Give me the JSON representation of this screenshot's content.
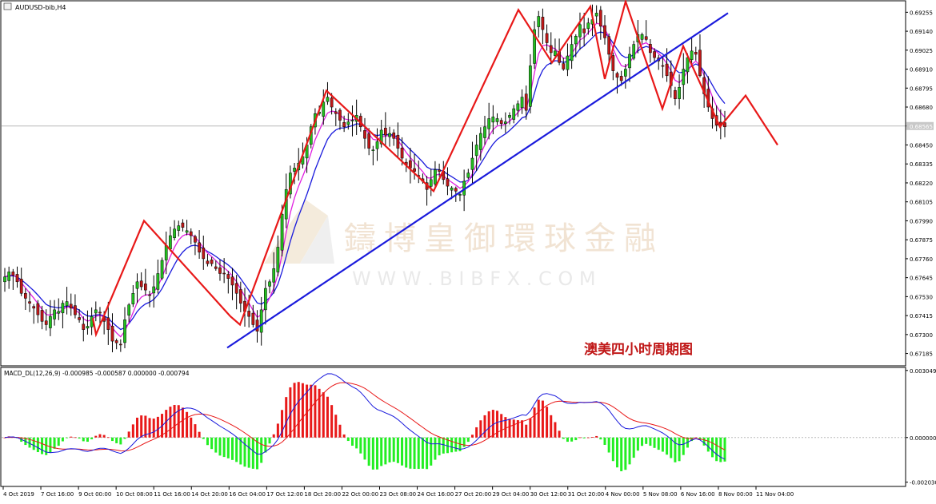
{
  "symbol_title": "AUDUSD-bib,H4",
  "macd_title": "MACD_DL(12,26,9) -0.000985 -0.000587 0.000000 -0.000794",
  "annotation": "澳美四小时周期图",
  "watermark": {
    "cn": "鑄博皇御環球金融",
    "url": "W W W . B I B F X . C O M"
  },
  "current_price_label": "0.68565",
  "colors": {
    "bull": "#22c01f",
    "bear": "#c01818",
    "ma_fast": "#e020e0",
    "ma_slow": "#1a1adc",
    "trendline": "#1a1adc",
    "zigzag": "#e81818",
    "hist_pos": "#e81818",
    "hist_neg": "#22ee22",
    "macd_line": "#1a1adc",
    "signal_line": "#e81818",
    "annotation": "#c01818"
  },
  "chart_data": [
    {
      "type": "candlestick",
      "title": "AUDUSD-bib,H4",
      "price_axis_ticks": [
        "0.69255",
        "0.69140",
        "0.69025",
        "0.68910",
        "0.68795",
        "0.68680",
        "0.68565",
        "0.68450",
        "0.68335",
        "0.68220",
        "0.68105",
        "0.67990",
        "0.67875",
        "0.67760",
        "0.67645",
        "0.67530",
        "0.67415",
        "0.67300",
        "0.67185"
      ],
      "time_axis_labels": [
        "4 Oct 2019",
        "7 Oct 16:00",
        "9 Oct 00:00",
        "10 Oct 08:00",
        "11 Oct 16:00",
        "14 Oct 20:00",
        "16 Oct 04:00",
        "17 Oct 12:00",
        "18 Oct 20:00",
        "22 Oct 00:00",
        "23 Oct 08:00",
        "24 Oct 16:00",
        "27 Oct 20:00",
        "29 Oct 04:00",
        "30 Oct 12:00",
        "31 Oct 20:00",
        "4 Nov 00:00",
        "5 Nov 08:00",
        "6 Nov 16:00",
        "8 Nov 00:00",
        "11 Nov 04:00"
      ],
      "ylim": [
        0.6712,
        0.6931
      ],
      "closes": [
        0.6765,
        0.6768,
        0.6766,
        0.6762,
        0.6755,
        0.6752,
        0.6749,
        0.6746,
        0.6742,
        0.6738,
        0.6736,
        0.6741,
        0.6745,
        0.6744,
        0.6749,
        0.675,
        0.6746,
        0.6742,
        0.6739,
        0.6733,
        0.6735,
        0.6741,
        0.6745,
        0.6743,
        0.6738,
        0.6733,
        0.6726,
        0.6725,
        0.6724,
        0.6739,
        0.6748,
        0.6755,
        0.6762,
        0.6759,
        0.6757,
        0.6754,
        0.6759,
        0.6767,
        0.6775,
        0.6784,
        0.679,
        0.6794,
        0.6796,
        0.6795,
        0.6793,
        0.679,
        0.6786,
        0.678,
        0.6776,
        0.6773,
        0.6773,
        0.677,
        0.6767,
        0.6767,
        0.6764,
        0.676,
        0.6755,
        0.6749,
        0.6744,
        0.6741,
        0.6736,
        0.6732,
        0.6745,
        0.6758,
        0.6762,
        0.677,
        0.6783,
        0.6803,
        0.6818,
        0.6828,
        0.6831,
        0.6834,
        0.6838,
        0.6845,
        0.6856,
        0.6864,
        0.6865,
        0.6871,
        0.6874,
        0.6868,
        0.6864,
        0.686,
        0.6856,
        0.6859,
        0.686,
        0.6863,
        0.6856,
        0.6849,
        0.6843,
        0.6842,
        0.6847,
        0.6854,
        0.6851,
        0.6852,
        0.6849,
        0.6843,
        0.6837,
        0.6833,
        0.6831,
        0.6829,
        0.6826,
        0.6823,
        0.6818,
        0.6824,
        0.683,
        0.6829,
        0.6824,
        0.682,
        0.6819,
        0.6817,
        0.6815,
        0.6823,
        0.6828,
        0.6837,
        0.6845,
        0.6852,
        0.6856,
        0.6861,
        0.6862,
        0.6861,
        0.6858,
        0.6859,
        0.6863,
        0.6867,
        0.687,
        0.6874,
        0.6866,
        0.6893,
        0.6915,
        0.6923,
        0.6915,
        0.6907,
        0.6901,
        0.6902,
        0.6895,
        0.6891,
        0.6899,
        0.6906,
        0.6911,
        0.6918,
        0.6913,
        0.6919,
        0.6921,
        0.6925,
        0.6917,
        0.691,
        0.69,
        0.689,
        0.6886,
        0.6884,
        0.6891,
        0.69,
        0.6906,
        0.6912,
        0.6912,
        0.6909,
        0.6901,
        0.6898,
        0.6896,
        0.6893,
        0.6887,
        0.6881,
        0.6873,
        0.688,
        0.6891,
        0.6898,
        0.6902,
        0.69,
        0.6887,
        0.6876,
        0.6868,
        0.6861,
        0.6857,
        0.6857,
        0.6856
      ],
      "moving_averages": [
        "fast MA",
        "slow MA"
      ],
      "trendline": {
        "from": [
          "16 Oct 04:00",
          0.6722
        ],
        "to": [
          "11 Nov 04:00",
          0.6925
        ]
      },
      "zigzag": [
        0.674,
        0.673,
        0.6799,
        0.6741,
        0.6736,
        0.6878,
        0.6817,
        0.6927,
        0.6895,
        0.6929,
        0.6885,
        0.6932,
        0.6867,
        0.6905,
        0.6856,
        0.6875,
        0.6845
      ],
      "current_price": 0.68565
    },
    {
      "type": "bar+line",
      "title": "MACD_DL(12,26,9) -0.000985 -0.000587 0.000000 -0.000794",
      "axis_ticks": [
        "0.003049",
        "0.000000",
        "-0.002030"
      ],
      "ylim": [
        -0.00215,
        0.00315
      ],
      "series": [
        {
          "name": "MACD"
        },
        {
          "name": "Signal"
        }
      ]
    }
  ]
}
